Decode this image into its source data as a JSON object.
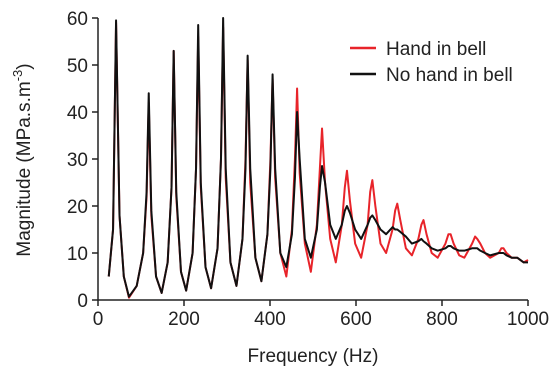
{
  "chart_data": {
    "type": "line",
    "xlabel": "Frequency (Hz)",
    "ylabel": {
      "text": "Magnitude (MPa.s.m",
      "sup": "-3",
      "end": ")"
    },
    "x": [
      25,
      35,
      42,
      50,
      60,
      72,
      90,
      105,
      113,
      118,
      124,
      135,
      148,
      162,
      171,
      176,
      182,
      193,
      205,
      220,
      228,
      233,
      239,
      250,
      263,
      278,
      286,
      291,
      297,
      308,
      322,
      336,
      343,
      348,
      354,
      366,
      380,
      394,
      401,
      406,
      412,
      424,
      438,
      451,
      458,
      463,
      469,
      481,
      495,
      509,
      516,
      521,
      528,
      540,
      553,
      567,
      574,
      579,
      586,
      598,
      612,
      627,
      633,
      638,
      645,
      657,
      670,
      685,
      691,
      696,
      703,
      716,
      730,
      745,
      752,
      757,
      764,
      776,
      790,
      808,
      815,
      820,
      827,
      840,
      852,
      870,
      877,
      882,
      889,
      900,
      912,
      932,
      938,
      943,
      950,
      962,
      975,
      990,
      1000
    ],
    "series": [
      {
        "name": "Hand in bell",
        "color": "#e8242a",
        "values": [
          5,
          15,
          59,
          18,
          5,
          0.5,
          3,
          10,
          22,
          42,
          18,
          5,
          1.5,
          8,
          24,
          53,
          22,
          6,
          2,
          10,
          28,
          56,
          24,
          7,
          2.5,
          11,
          30,
          58,
          26,
          8,
          3,
          13,
          30,
          51,
          25,
          9,
          4,
          14,
          30,
          47,
          26,
          10,
          5,
          15,
          30,
          45,
          27,
          12,
          6,
          16,
          28,
          36.5,
          25,
          13,
          8,
          16,
          24,
          27.5,
          21,
          12,
          9,
          16,
          23,
          25.5,
          20,
          12,
          10,
          15,
          19,
          20.5,
          17,
          11,
          9.5,
          13,
          16,
          17,
          14,
          10,
          9,
          12,
          14,
          14,
          12,
          9.5,
          9,
          12,
          13.5,
          13,
          12,
          10,
          9,
          10,
          11,
          11,
          10,
          9,
          9,
          8,
          8.5
        ]
      },
      {
        "name": "No hand in bell",
        "color": "#111111",
        "values": [
          5,
          15,
          59.5,
          18,
          5,
          0.7,
          3,
          10,
          23,
          44,
          19,
          5,
          1.5,
          8,
          24,
          53,
          23,
          6,
          2,
          10,
          28,
          58.5,
          25,
          7,
          2.5,
          11,
          30,
          60,
          28,
          8,
          3,
          13,
          28,
          52,
          28,
          9,
          4,
          14,
          28,
          48,
          28,
          10,
          7,
          14,
          26,
          40,
          30,
          13,
          9,
          15,
          24,
          28.5,
          25,
          16,
          13,
          16,
          19,
          20,
          18.5,
          15,
          13,
          16,
          17.5,
          18,
          17,
          15,
          14,
          15.5,
          15,
          15,
          14.5,
          13.5,
          12,
          12.5,
          13,
          12.5,
          12,
          11,
          10.5,
          11,
          11.5,
          11.5,
          11,
          10.5,
          10.5,
          11,
          11,
          11,
          10.5,
          10,
          9.5,
          10,
          10,
          10,
          9.5,
          9,
          9,
          8,
          8
        ]
      }
    ],
    "xlim": [
      0,
      1000
    ],
    "xticks": [
      0,
      200,
      400,
      600,
      800,
      1000
    ],
    "ylim": [
      0,
      60
    ],
    "yticks": [
      0,
      10,
      20,
      30,
      40,
      50,
      60
    ],
    "legend": "upper-right"
  }
}
